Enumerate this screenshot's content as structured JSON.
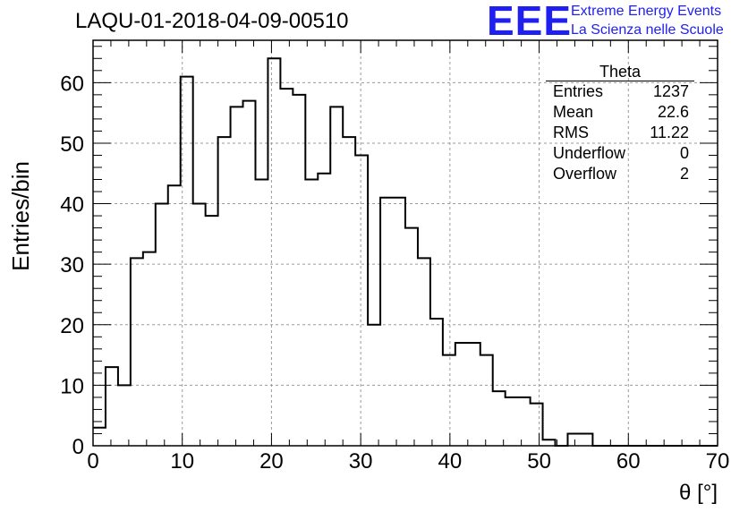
{
  "title": "LAQU-01-2018-04-09-00510",
  "logo": {
    "text": "EEE",
    "line1": "Extreme Energy Events",
    "line2": "La Scienza nelle Scuole",
    "color": "#1f1ff0"
  },
  "stats": {
    "title": "Theta",
    "rows": [
      {
        "label": "Entries",
        "value": "1237"
      },
      {
        "label": "Mean",
        "value": "22.6"
      },
      {
        "label": "RMS",
        "value": "11.22"
      },
      {
        "label": "Underflow",
        "value": "0"
      },
      {
        "label": "Overflow",
        "value": "2"
      }
    ]
  },
  "chart_data": {
    "type": "bar",
    "style": "step-histogram",
    "title": "LAQU-01-2018-04-09-00510",
    "xlabel": "θ [°]",
    "ylabel": "Entries/bin",
    "xlim": [
      0,
      70
    ],
    "ylim": [
      0,
      67
    ],
    "bin_width": 1.4,
    "x_ticks": [
      0,
      10,
      20,
      30,
      40,
      50,
      60,
      70
    ],
    "y_ticks": [
      0,
      10,
      20,
      30,
      40,
      50,
      60
    ],
    "grid": true,
    "values": [
      3,
      13,
      10,
      31,
      32,
      40,
      43,
      61,
      40,
      38,
      51,
      56,
      57,
      44,
      64,
      59,
      58,
      44,
      45,
      56,
      51,
      48,
      20,
      41,
      41,
      36,
      31,
      21,
      15,
      17,
      17,
      15,
      9,
      8,
      8,
      7,
      1,
      0,
      2,
      2,
      0,
      0,
      0,
      0,
      0,
      0,
      0,
      0,
      0,
      0
    ]
  }
}
